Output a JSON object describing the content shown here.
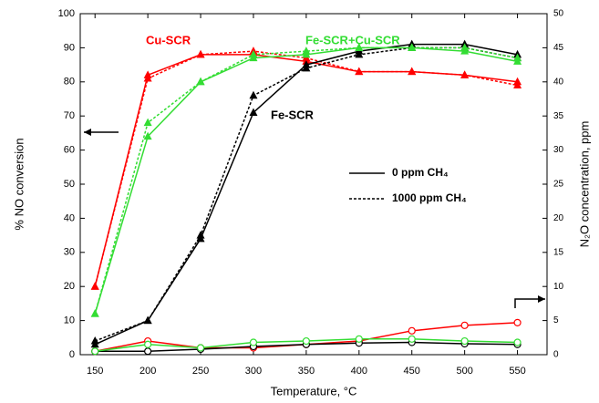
{
  "chart_data": {
    "type": "line",
    "xlabel": "Temperature, °C",
    "ylabel": "% NO conversion",
    "y2label": "N₂O concentration, ppm",
    "x": [
      150,
      200,
      250,
      300,
      350,
      400,
      450,
      500,
      550
    ],
    "xlim": [
      136,
      578
    ],
    "xticks": [
      150,
      200,
      250,
      300,
      350,
      400,
      450,
      500,
      550
    ],
    "ylim": [
      0,
      100
    ],
    "yticks": [
      0,
      10,
      20,
      30,
      40,
      50,
      60,
      70,
      80,
      90,
      100
    ],
    "y2lim": [
      0,
      50
    ],
    "y2ticks": [
      0,
      5,
      10,
      15,
      20,
      25,
      30,
      35,
      40,
      45,
      50
    ],
    "legend": [
      {
        "label": "0 ppm CH₄",
        "dashed": false
      },
      {
        "label": "1000 ppm CH₄",
        "dashed": true
      }
    ],
    "annotations": [
      {
        "text": "Cu-SCR",
        "color": "#ff0000"
      },
      {
        "text": "Fe-SCR",
        "color": "#000000"
      },
      {
        "text": "Fe-SCR+Cu-SCR",
        "color": "#33dd33"
      }
    ],
    "series": [
      {
        "name": "Cu-SCR",
        "color": "#ff0000",
        "dashed": false,
        "marker": "filled",
        "values": [
          20,
          82,
          88,
          88,
          86,
          83,
          83,
          82,
          80
        ]
      },
      {
        "name": "Cu-SCR",
        "color": "#ff0000",
        "dashed": true,
        "marker": "filled",
        "values": [
          20,
          81,
          88,
          89,
          87,
          83,
          83,
          82,
          79
        ]
      },
      {
        "name": "Fe-SCR",
        "color": "#000000",
        "dashed": false,
        "marker": "filled",
        "values": [
          3,
          10,
          34,
          71,
          85,
          89,
          91,
          91,
          88
        ]
      },
      {
        "name": "Fe-SCR",
        "color": "#000000",
        "dashed": true,
        "marker": "filled",
        "values": [
          4,
          10,
          35,
          76,
          84,
          88,
          90,
          90,
          87
        ]
      },
      {
        "name": "Fe-SCR+Cu-SCR",
        "color": "#33dd33",
        "dashed": false,
        "marker": "filled",
        "values": [
          12,
          64,
          80,
          87,
          88,
          90,
          90,
          89,
          86
        ]
      },
      {
        "name": "Fe-SCR+Cu-SCR",
        "color": "#33dd33",
        "dashed": true,
        "marker": "filled",
        "values": [
          12,
          68,
          80,
          88,
          89,
          90,
          90,
          90,
          87
        ]
      },
      {
        "name": "Cu-SCR",
        "color": "#ff0000",
        "dashed": false,
        "marker": "open",
        "axis": "y2",
        "values": [
          0.5,
          2,
          1,
          1,
          1.5,
          2,
          3.5,
          4.3,
          4.7
        ]
      },
      {
        "name": "Fe-SCR",
        "color": "#000000",
        "dashed": false,
        "marker": "open",
        "axis": "y2",
        "values": [
          0.5,
          0.5,
          0.8,
          1.2,
          1.5,
          1.7,
          1.8,
          1.6,
          1.5
        ]
      },
      {
        "name": "Fe-SCR+Cu-SCR",
        "color": "#33dd33",
        "dashed": false,
        "marker": "open",
        "axis": "y2",
        "values": [
          0.5,
          1.5,
          1,
          1.8,
          2,
          2.3,
          2.3,
          2,
          1.8
        ]
      }
    ]
  }
}
